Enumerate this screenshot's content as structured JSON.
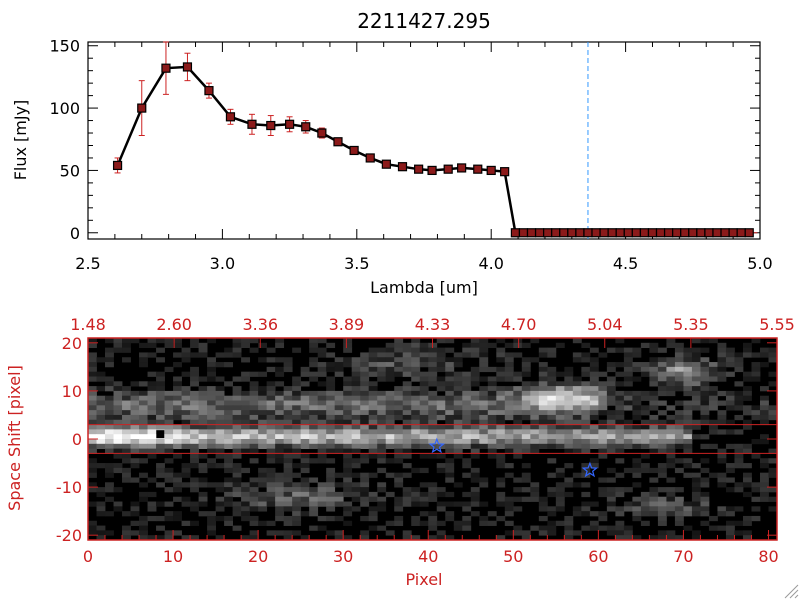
{
  "chart_data": [
    {
      "type": "line",
      "title": "2211427.295",
      "xlabel": "Lambda [um]",
      "ylabel": "Flux [mJy]",
      "xlim": [
        2.5,
        5.0
      ],
      "ylim": [
        -5,
        153
      ],
      "xticks": [
        "2.5",
        "3.0",
        "3.5",
        "4.0",
        "4.5",
        "5.0"
      ],
      "yticks": [
        "0",
        "50",
        "100",
        "150"
      ],
      "grid": false,
      "colors": {
        "line": "#000000",
        "marker": "#8b1a1a",
        "errorbar": "#cc2222",
        "marker_line": "#3399ff",
        "zero_line": "#cc2222"
      },
      "marker_line_x": 4.36,
      "series": [
        {
          "x": [
            2.61,
            2.7,
            2.79,
            2.87,
            2.95,
            3.03,
            3.11,
            3.18,
            3.25,
            3.31,
            3.37,
            3.43,
            3.49,
            3.55,
            3.61,
            3.67,
            3.73,
            3.78,
            3.84,
            3.89,
            3.95,
            4.0,
            4.05,
            4.09,
            4.12,
            4.15,
            4.18,
            4.21,
            4.24,
            4.27,
            4.3,
            4.33,
            4.36,
            4.39,
            4.42,
            4.45,
            4.48,
            4.51,
            4.54,
            4.57,
            4.6,
            4.63,
            4.66,
            4.69,
            4.72,
            4.75,
            4.78,
            4.81,
            4.84,
            4.87,
            4.9,
            4.93,
            4.96
          ],
          "y": [
            54,
            100,
            132,
            133,
            114,
            93,
            87,
            86,
            87,
            85,
            80,
            73,
            66,
            60,
            55,
            53,
            51,
            50,
            51,
            52,
            51,
            50,
            49,
            0,
            0,
            0,
            0,
            0,
            0,
            0,
            0,
            0,
            0,
            0,
            0,
            0,
            0,
            0,
            0,
            0,
            0,
            0,
            0,
            0,
            0,
            0,
            0,
            0,
            0,
            0,
            0,
            0,
            0
          ],
          "err": [
            6,
            22,
            21,
            11,
            6,
            6,
            8,
            8,
            6,
            5,
            4,
            3,
            3,
            2,
            2,
            2,
            2,
            2,
            2,
            2,
            2,
            2,
            2,
            0,
            0,
            0,
            0,
            0,
            0,
            0,
            0,
            0,
            0,
            0,
            0,
            0,
            0,
            0,
            0,
            0,
            0,
            0,
            0,
            0,
            0,
            0,
            0,
            0,
            0,
            0,
            0,
            0,
            0
          ]
        }
      ]
    },
    {
      "type": "heatmap",
      "xlabel": "Pixel",
      "ylabel": "Space Shift [pixel]",
      "xlim": [
        0,
        81
      ],
      "ylim": [
        -21,
        21
      ],
      "xticks": [
        "0",
        "10",
        "20",
        "30",
        "40",
        "50",
        "60",
        "70",
        "80"
      ],
      "yticks": [
        "-20",
        "-10",
        "0",
        "10",
        "20"
      ],
      "top_xticks": [
        "1.48",
        "2.60",
        "3.36",
        "3.89",
        "4.33",
        "4.70",
        "5.04",
        "5.35",
        "5.55"
      ],
      "extraction_window_y": [
        3,
        -3
      ],
      "star_markers": [
        {
          "x": 41,
          "y": -1.5
        },
        {
          "x": 59,
          "y": -6.5
        }
      ],
      "peak_marker": {
        "x": 8.5,
        "y": 1
      },
      "colors": {
        "frame": "#cc2222",
        "star": "#3366ff",
        "window": "#cc2222"
      }
    }
  ]
}
